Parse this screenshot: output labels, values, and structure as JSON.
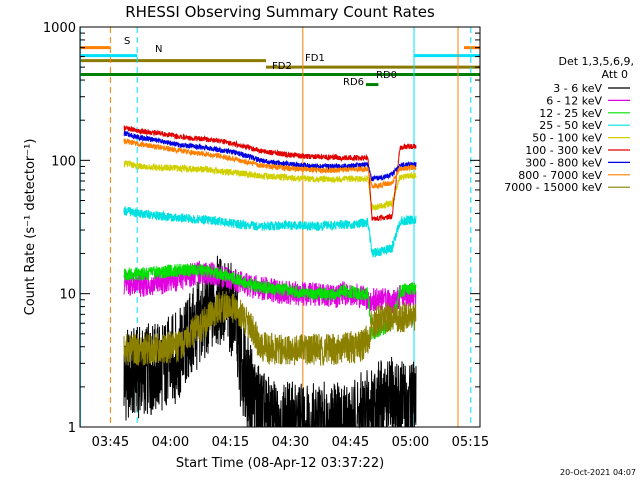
{
  "chart_data": {
    "type": "line",
    "title": "RHESSI Observing Summary Count Rates",
    "xlabel": "Start Time (08-Apr-12 03:37:22)",
    "ylabel": "Count Rate (s⁻¹ detector⁻¹)",
    "y_log": true,
    "ylim": [
      1,
      1000
    ],
    "xlim_minutes": [
      0,
      100
    ],
    "x_ticks": [
      {
        "label": "03:45",
        "minute": 7.6
      },
      {
        "label": "04:00",
        "minute": 22.6
      },
      {
        "label": "04:15",
        "minute": 37.6
      },
      {
        "label": "04:30",
        "minute": 52.6
      },
      {
        "label": "04:45",
        "minute": 67.6
      },
      {
        "label": "05:00",
        "minute": 82.6
      },
      {
        "label": "05:15",
        "minute": 97.6
      }
    ],
    "y_ticks": [
      {
        "label": "1",
        "value": 1
      },
      {
        "label": "10",
        "value": 10
      },
      {
        "label": "100",
        "value": 100
      },
      {
        "label": "1000",
        "value": 1000
      }
    ],
    "legend": {
      "header_line1": "Det 1,3,5,6,9,",
      "header_line2": "Att 0",
      "placement": "right"
    },
    "series": [
      {
        "name": "3 - 6 keV",
        "color": "#000000",
        "points": [
          [
            11,
            2.4
          ],
          [
            15,
            2.6
          ],
          [
            20,
            2.8
          ],
          [
            25,
            3.5
          ],
          [
            28,
            5
          ],
          [
            30,
            6
          ],
          [
            33,
            7.8
          ],
          [
            35,
            9
          ],
          [
            37,
            8
          ],
          [
            39,
            7
          ],
          [
            40,
            3
          ],
          [
            43,
            1.8
          ],
          [
            45,
            1.3
          ],
          [
            48,
            1
          ],
          [
            55,
            1
          ],
          [
            60,
            1
          ],
          [
            64,
            1
          ],
          [
            68,
            1
          ],
          [
            72,
            1.3
          ],
          [
            76,
            1.5
          ],
          [
            80,
            1.5
          ],
          [
            84,
            1.4
          ]
        ]
      },
      {
        "name": "6 - 12 keV",
        "color": "#e000e0",
        "points": [
          [
            11,
            12
          ],
          [
            15,
            11.5
          ],
          [
            20,
            12
          ],
          [
            25,
            13
          ],
          [
            30,
            14.5
          ],
          [
            33,
            14
          ],
          [
            36,
            13.2
          ],
          [
            39,
            12.5
          ],
          [
            42,
            11.5
          ],
          [
            46,
            11
          ],
          [
            50,
            10.2
          ],
          [
            55,
            10
          ],
          [
            60,
            9.8
          ],
          [
            64,
            9.5
          ],
          [
            66,
            10.2
          ],
          [
            68,
            10
          ],
          [
            70,
            9.5
          ],
          [
            73,
            9
          ],
          [
            76,
            9
          ],
          [
            78,
            8.5
          ],
          [
            80,
            9.5
          ],
          [
            84,
            10
          ]
        ]
      },
      {
        "name": "12 - 25 keV",
        "color": "#00e000",
        "points": [
          [
            11,
            14
          ],
          [
            15,
            14
          ],
          [
            20,
            14.5
          ],
          [
            25,
            15
          ],
          [
            30,
            15
          ],
          [
            33,
            14.5
          ],
          [
            36,
            14
          ],
          [
            40,
            12.5
          ],
          [
            44,
            11.5
          ],
          [
            48,
            11
          ],
          [
            52,
            10.5
          ],
          [
            56,
            10.2
          ],
          [
            60,
            10
          ],
          [
            64,
            9.8
          ],
          [
            66,
            10.5
          ],
          [
            68,
            10.2
          ],
          [
            70,
            10
          ],
          [
            72,
            10
          ],
          [
            73,
            5
          ],
          [
            76,
            5.5
          ],
          [
            78,
            6
          ],
          [
            80,
            10.5
          ],
          [
            84,
            11
          ]
        ]
      },
      {
        "name": "25 - 50 keV",
        "color": "#00e0e0",
        "points": [
          [
            11,
            42
          ],
          [
            15,
            40
          ],
          [
            20,
            38
          ],
          [
            25,
            37
          ],
          [
            30,
            36
          ],
          [
            35,
            35
          ],
          [
            40,
            33
          ],
          [
            45,
            32
          ],
          [
            50,
            32.5
          ],
          [
            55,
            32.5
          ],
          [
            60,
            32
          ],
          [
            65,
            33
          ],
          [
            68,
            33
          ],
          [
            70,
            34
          ],
          [
            72,
            34
          ],
          [
            73,
            20
          ],
          [
            76,
            21
          ],
          [
            78,
            22
          ],
          [
            80,
            35
          ],
          [
            84,
            36
          ]
        ]
      },
      {
        "name": "50 - 100 keV",
        "color": "#d0d000",
        "points": [
          [
            11,
            95
          ],
          [
            15,
            90
          ],
          [
            20,
            88
          ],
          [
            25,
            87
          ],
          [
            30,
            86
          ],
          [
            35,
            83
          ],
          [
            40,
            80
          ],
          [
            45,
            76
          ],
          [
            50,
            75
          ],
          [
            55,
            73
          ],
          [
            60,
            72
          ],
          [
            65,
            72
          ],
          [
            68,
            73
          ],
          [
            70,
            72
          ],
          [
            72,
            73
          ],
          [
            73,
            44
          ],
          [
            76,
            46
          ],
          [
            78,
            48
          ],
          [
            80,
            75
          ],
          [
            84,
            77
          ]
        ]
      },
      {
        "name": "100 - 300 keV",
        "color": "#e00000",
        "points": [
          [
            11,
            175
          ],
          [
            15,
            165
          ],
          [
            20,
            160
          ],
          [
            25,
            150
          ],
          [
            30,
            145
          ],
          [
            35,
            140
          ],
          [
            40,
            130
          ],
          [
            45,
            118
          ],
          [
            50,
            112
          ],
          [
            55,
            108
          ],
          [
            60,
            106
          ],
          [
            65,
            105
          ],
          [
            68,
            105
          ],
          [
            70,
            104
          ],
          [
            72,
            104
          ],
          [
            73,
            36
          ],
          [
            76,
            37
          ],
          [
            78,
            38
          ],
          [
            80,
            125
          ],
          [
            84,
            128
          ]
        ]
      },
      {
        "name": "300 - 800 keV",
        "color": "#0000e0",
        "points": [
          [
            11,
            160
          ],
          [
            15,
            148
          ],
          [
            20,
            140
          ],
          [
            25,
            130
          ],
          [
            30,
            126
          ],
          [
            35,
            120
          ],
          [
            40,
            112
          ],
          [
            45,
            100
          ],
          [
            50,
            95
          ],
          [
            55,
            92
          ],
          [
            60,
            90
          ],
          [
            65,
            90
          ],
          [
            68,
            91
          ],
          [
            70,
            92
          ],
          [
            72,
            92
          ],
          [
            73,
            72
          ],
          [
            76,
            75
          ],
          [
            78,
            78
          ],
          [
            80,
            92
          ],
          [
            84,
            93
          ]
        ]
      },
      {
        "name": "800 - 7000 keV",
        "color": "#ff8000",
        "points": [
          [
            11,
            140
          ],
          [
            15,
            132
          ],
          [
            20,
            125
          ],
          [
            25,
            118
          ],
          [
            30,
            112
          ],
          [
            35,
            108
          ],
          [
            40,
            100
          ],
          [
            45,
            92
          ],
          [
            50,
            88
          ],
          [
            55,
            86
          ],
          [
            60,
            84
          ],
          [
            65,
            84
          ],
          [
            68,
            86
          ],
          [
            70,
            86
          ],
          [
            72,
            86
          ],
          [
            73,
            64
          ],
          [
            76,
            66
          ],
          [
            78,
            68
          ],
          [
            80,
            87
          ],
          [
            84,
            88
          ]
        ]
      },
      {
        "name": "7000 - 15000 keV",
        "color": "#8b8000",
        "points": [
          [
            11,
            3.8
          ],
          [
            15,
            3.8
          ],
          [
            20,
            3.9
          ],
          [
            25,
            4
          ],
          [
            28,
            5
          ],
          [
            30,
            5.5
          ],
          [
            32,
            6.5
          ],
          [
            35,
            8
          ],
          [
            37,
            8
          ],
          [
            40,
            7
          ],
          [
            43,
            5.5
          ],
          [
            45,
            4
          ],
          [
            50,
            3.8
          ],
          [
            55,
            3.8
          ],
          [
            60,
            3.8
          ],
          [
            65,
            3.8
          ],
          [
            68,
            4
          ],
          [
            70,
            4
          ],
          [
            72,
            4.5
          ],
          [
            73,
            6
          ],
          [
            76,
            6.5
          ],
          [
            78,
            6.6
          ],
          [
            80,
            6.6
          ],
          [
            84,
            6.8
          ]
        ]
      }
    ],
    "flag_labels": [
      {
        "text": "S",
        "color": "#ff8000"
      },
      {
        "text": "N",
        "color": "#00e0ff"
      },
      {
        "text": "FD1",
        "color": "#8b7a00"
      },
      {
        "text": "FD2",
        "color": "#8b7a00"
      },
      {
        "text": "RD0",
        "color": "#008000"
      },
      {
        "text": "RD6",
        "color": "#008000"
      }
    ],
    "flag_bars": [
      {
        "color": "#ff8000",
        "y_value": 700,
        "from": 0,
        "to": 7.6
      },
      {
        "color": "#ff8000",
        "y_value": 700,
        "from": 96,
        "to": 100
      },
      {
        "color": "#00e0ff",
        "y_value": 610,
        "from": 0,
        "to": 14.3
      },
      {
        "color": "#00e0ff",
        "y_value": 610,
        "from": 83.5,
        "to": 100
      },
      {
        "color": "#8b7a00",
        "y_value": 560,
        "from": 0,
        "to": 46.5
      },
      {
        "color": "#8b7a00",
        "y_value": 500,
        "from": 46.5,
        "to": 100
      },
      {
        "color": "#008000",
        "y_value": 440,
        "from": 0,
        "to": 100
      },
      {
        "color": "#008000",
        "y_value": 370,
        "from": 71.5,
        "to": 74.6
      }
    ],
    "vertical_markers": [
      {
        "color": "#ff8000",
        "style": "dashed",
        "minute": 7.6
      },
      {
        "color": "#00e0ff",
        "style": "dashed",
        "minute": 14.3
      },
      {
        "color": "#00e0ff",
        "style": "solid",
        "minute": 0.1
      },
      {
        "color": "#ff8000",
        "style": "solid",
        "minute": 55.7
      },
      {
        "color": "#00e0ff",
        "style": "solid",
        "minute": 83.5
      },
      {
        "color": "#ff8000",
        "style": "solid",
        "minute": 94.5
      },
      {
        "color": "#00e0ff",
        "style": "dashed",
        "minute": 97.7
      }
    ]
  },
  "footer": {
    "timestamp": "20-Oct-2021 04:07"
  }
}
